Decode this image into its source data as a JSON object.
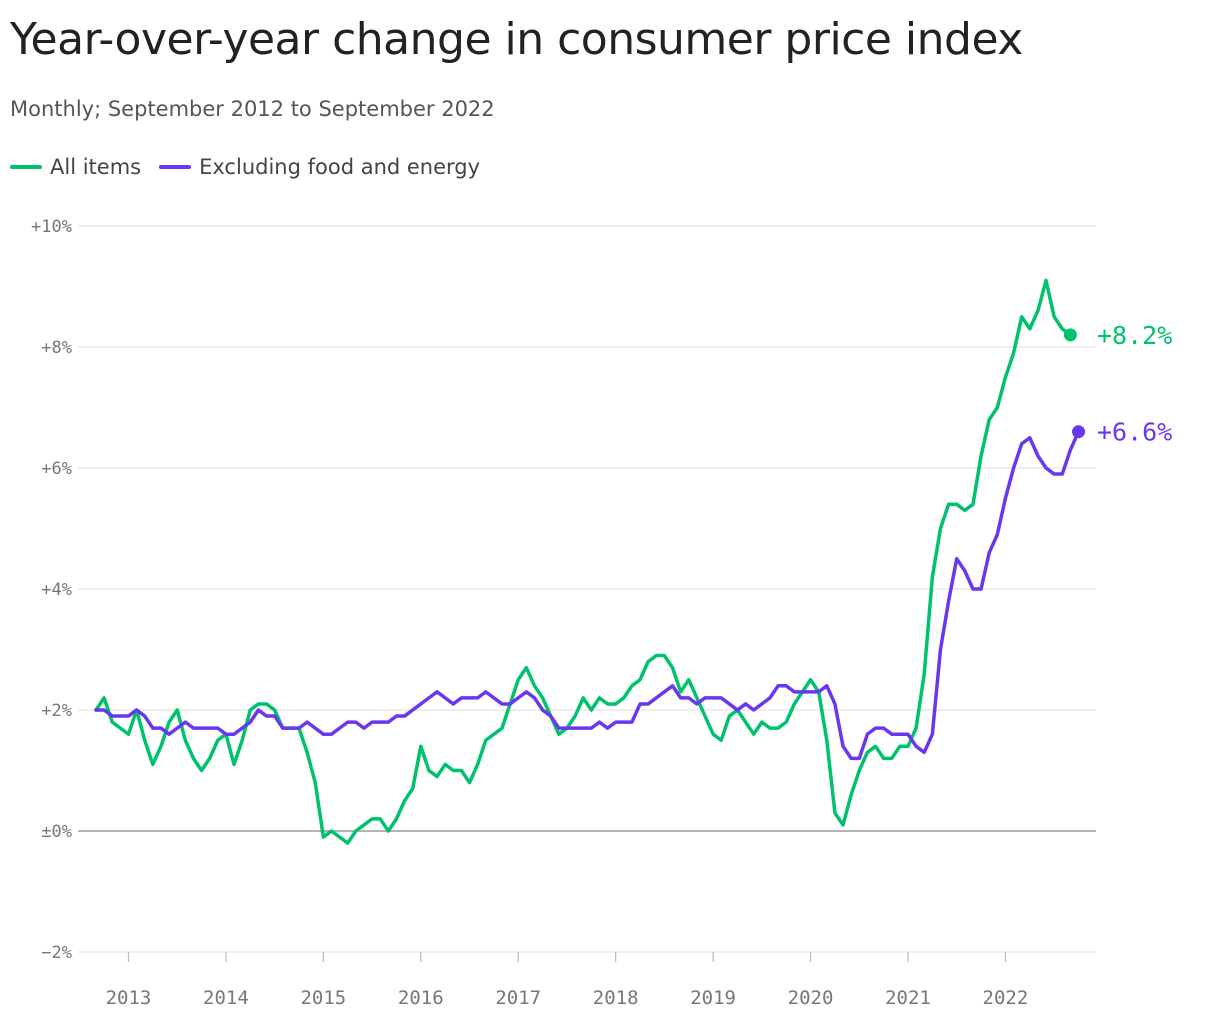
{
  "colors": {
    "all_items": "#00c26d",
    "core": "#6a37f0",
    "grid": "#e4e4e4",
    "zero_line": "#9a9a9a",
    "axis_text": "#777777"
  },
  "chart_data": {
    "type": "line",
    "title": "Year-over-year change in consumer price index",
    "subtitle": "Monthly; September 2012 to September 2022",
    "ylim": [
      -2,
      10
    ],
    "y_ticks": [
      {
        "value": -2,
        "label": "−2%"
      },
      {
        "value": 0,
        "label": "±0%"
      },
      {
        "value": 2,
        "label": "+2%"
      },
      {
        "value": 4,
        "label": "+4%"
      },
      {
        "value": 6,
        "label": "+6%"
      },
      {
        "value": 8,
        "label": "+8%"
      },
      {
        "value": 10,
        "label": "+10%"
      }
    ],
    "x_ticks": [
      "2013",
      "2014",
      "2015",
      "2016",
      "2017",
      "2018",
      "2019",
      "2020",
      "2021",
      "2022"
    ],
    "x_start": "2012-09",
    "x_end": "2022-09",
    "grid": true,
    "legend_position": "top-left",
    "series": [
      {
        "name": "All items",
        "end_label": "+8.2%",
        "values": [
          2.0,
          2.2,
          1.8,
          1.7,
          1.6,
          2.0,
          1.5,
          1.1,
          1.4,
          1.8,
          2.0,
          1.5,
          1.2,
          1.0,
          1.2,
          1.5,
          1.6,
          1.1,
          1.5,
          2.0,
          2.1,
          2.1,
          2.0,
          1.7,
          1.7,
          1.7,
          1.3,
          0.8,
          -0.1,
          0.0,
          -0.1,
          -0.2,
          0.0,
          0.1,
          0.2,
          0.2,
          0.0,
          0.2,
          0.5,
          0.7,
          1.4,
          1.0,
          0.9,
          1.1,
          1.0,
          1.0,
          0.8,
          1.1,
          1.5,
          1.6,
          1.7,
          2.1,
          2.5,
          2.7,
          2.4,
          2.2,
          1.9,
          1.6,
          1.7,
          1.9,
          2.2,
          2.0,
          2.2,
          2.1,
          2.1,
          2.2,
          2.4,
          2.5,
          2.8,
          2.9,
          2.9,
          2.7,
          2.3,
          2.5,
          2.2,
          1.9,
          1.6,
          1.5,
          1.9,
          2.0,
          1.8,
          1.6,
          1.8,
          1.7,
          1.7,
          1.8,
          2.1,
          2.3,
          2.5,
          2.3,
          1.5,
          0.3,
          0.1,
          0.6,
          1.0,
          1.3,
          1.4,
          1.2,
          1.2,
          1.4,
          1.4,
          1.7,
          2.6,
          4.2,
          5.0,
          5.4,
          5.4,
          5.3,
          5.4,
          6.2,
          6.8,
          7.0,
          7.5,
          7.9,
          8.5,
          8.3,
          8.6,
          9.1,
          8.5,
          8.3,
          8.2
        ]
      },
      {
        "name": "Excluding food and energy",
        "end_label": "+6.6%",
        "values": [
          2.0,
          2.0,
          1.9,
          1.9,
          1.9,
          2.0,
          1.9,
          1.7,
          1.7,
          1.6,
          1.7,
          1.8,
          1.7,
          1.7,
          1.7,
          1.7,
          1.6,
          1.6,
          1.7,
          1.8,
          2.0,
          1.9,
          1.9,
          1.7,
          1.7,
          1.7,
          1.8,
          1.7,
          1.6,
          1.6,
          1.7,
          1.8,
          1.8,
          1.7,
          1.8,
          1.8,
          1.8,
          1.9,
          1.9,
          2.0,
          2.1,
          2.2,
          2.3,
          2.2,
          2.1,
          2.2,
          2.2,
          2.2,
          2.3,
          2.2,
          2.1,
          2.1,
          2.2,
          2.3,
          2.2,
          2.0,
          1.9,
          1.7,
          1.7,
          1.7,
          1.7,
          1.7,
          1.8,
          1.7,
          1.8,
          1.8,
          1.8,
          2.1,
          2.1,
          2.2,
          2.3,
          2.4,
          2.2,
          2.2,
          2.1,
          2.2,
          2.2,
          2.2,
          2.1,
          2.0,
          2.1,
          2.0,
          2.1,
          2.2,
          2.4,
          2.4,
          2.3,
          2.3,
          2.3,
          2.3,
          2.4,
          2.1,
          1.4,
          1.2,
          1.2,
          1.6,
          1.7,
          1.7,
          1.6,
          1.6,
          1.6,
          1.4,
          1.3,
          1.6,
          3.0,
          3.8,
          4.5,
          4.3,
          4.0,
          4.0,
          4.6,
          4.9,
          5.5,
          6.0,
          6.4,
          6.5,
          6.2,
          6.0,
          5.9,
          5.9,
          6.3,
          6.6
        ]
      }
    ]
  }
}
